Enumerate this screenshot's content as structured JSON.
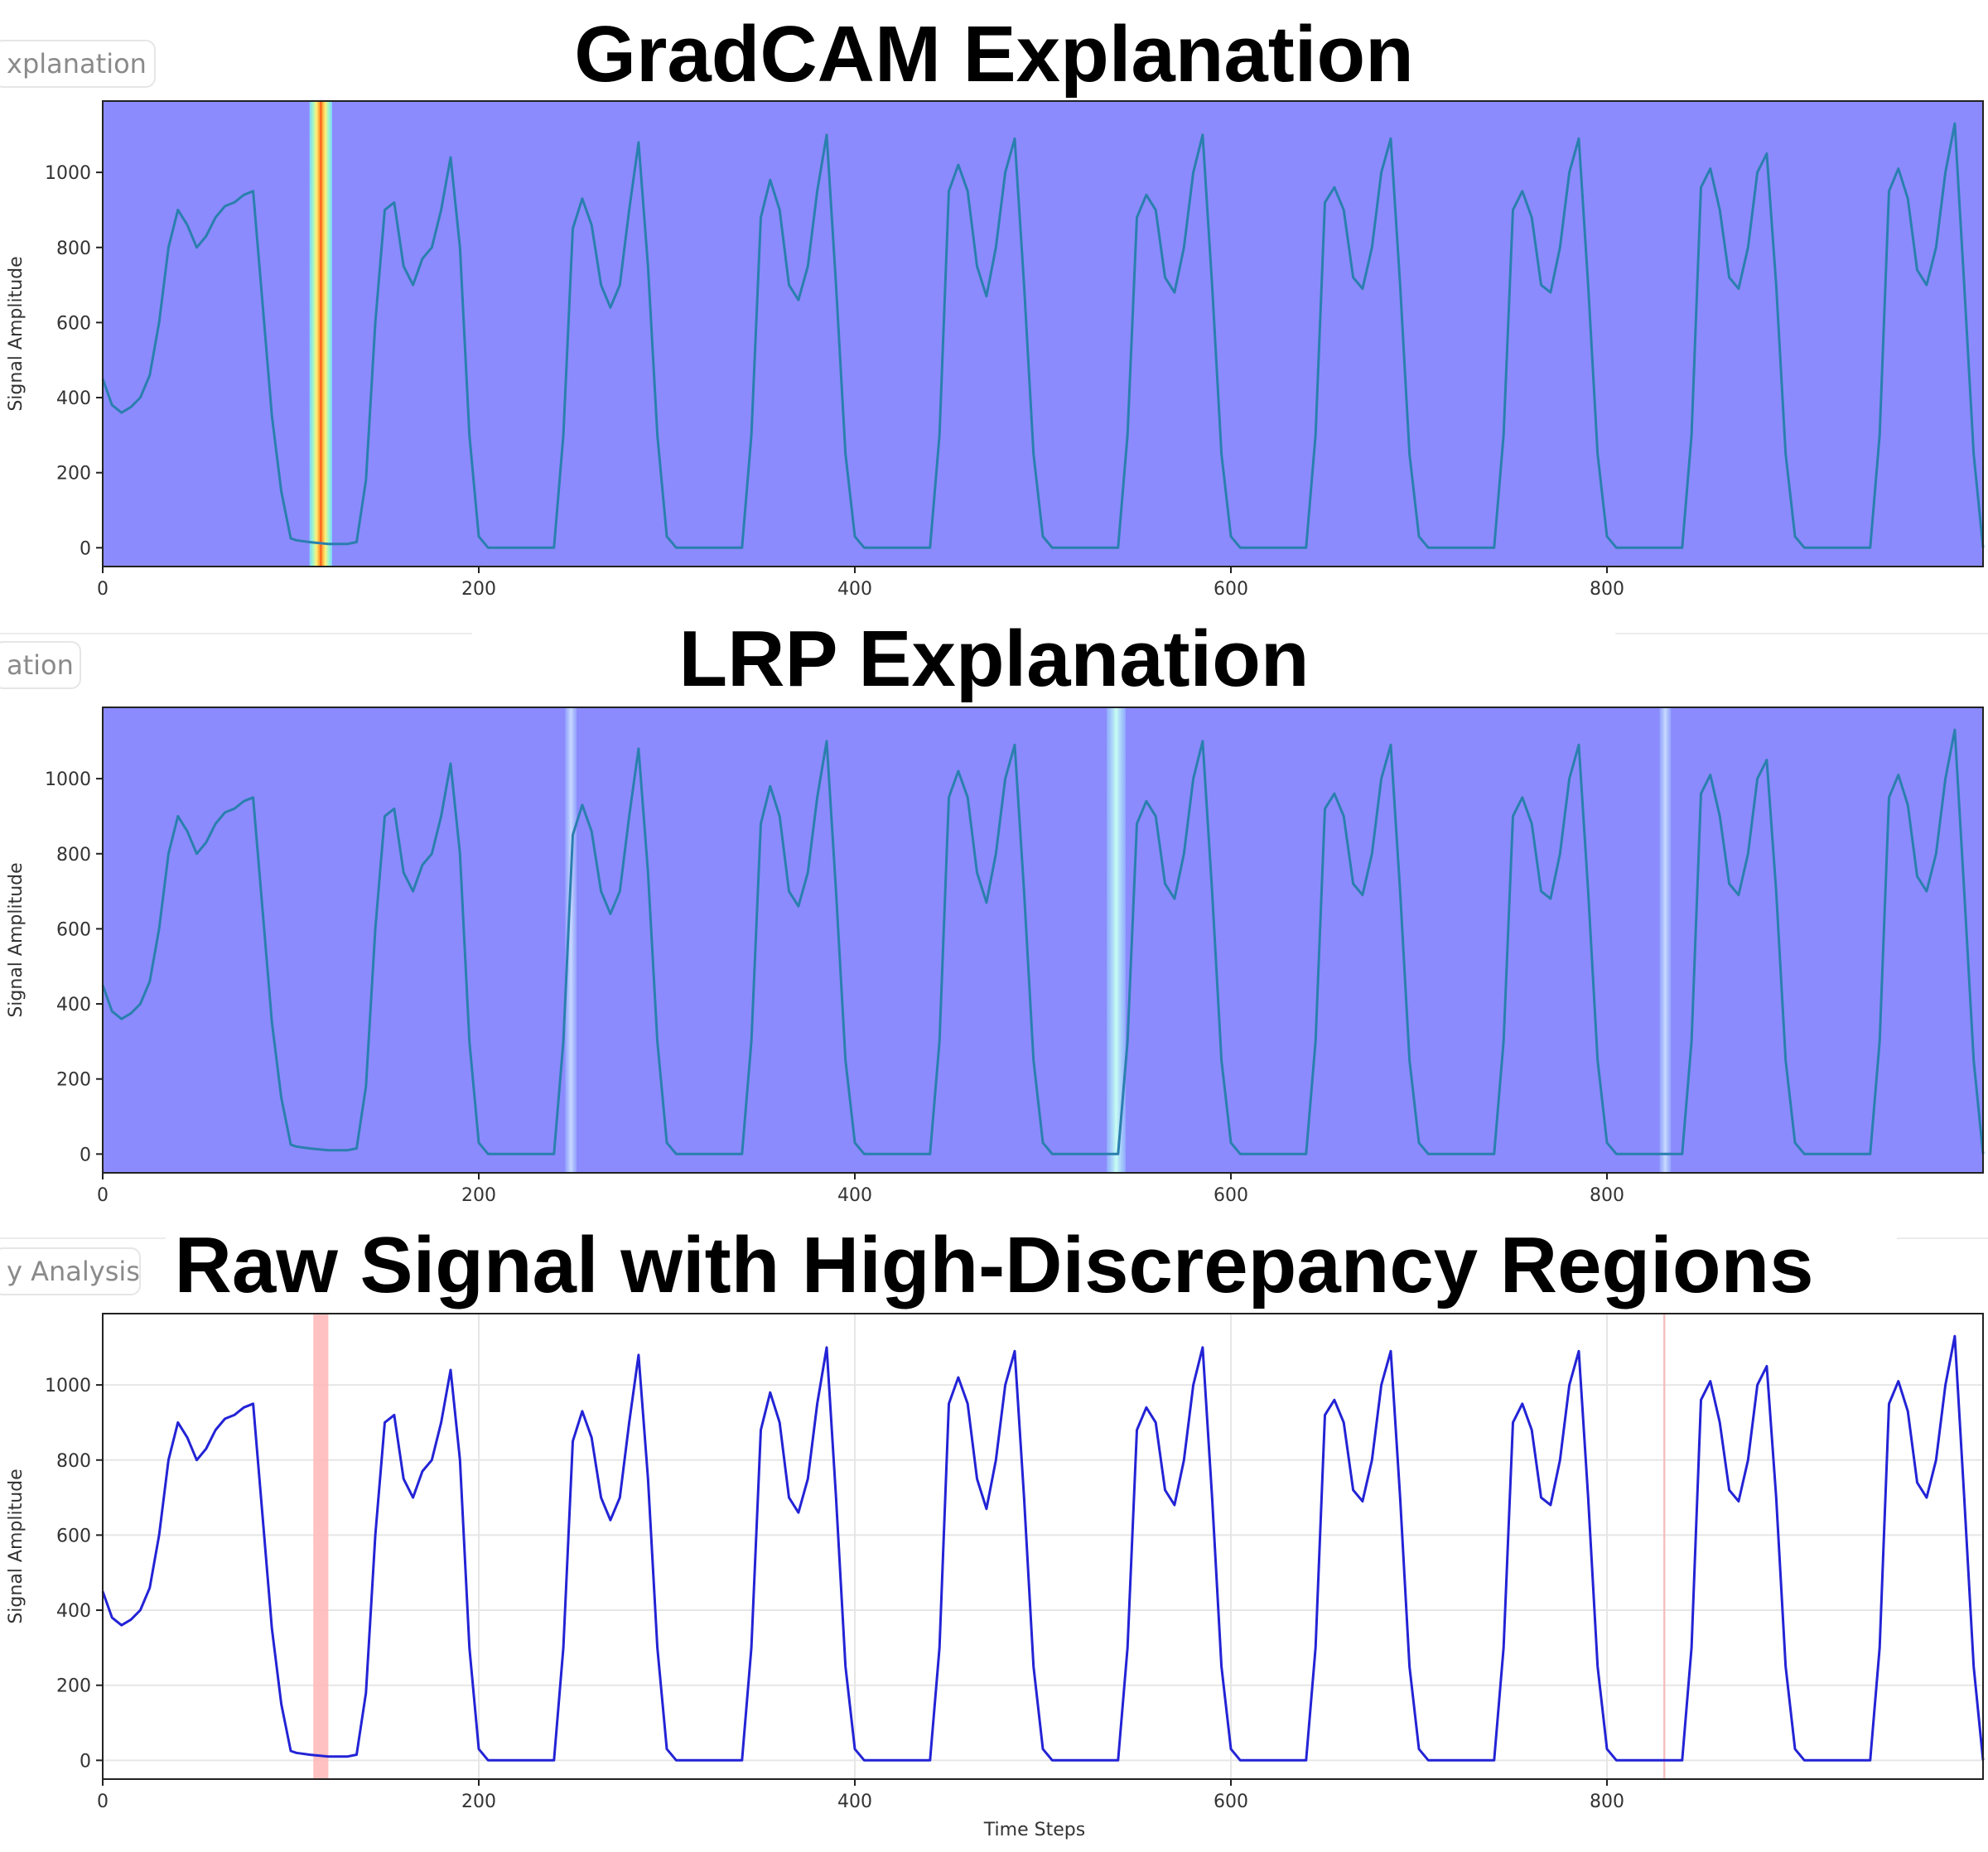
{
  "panels": [
    {
      "title": "GradCAM Explanation",
      "tab_label": "xplanation",
      "ylabel": "Signal Amplitude",
      "xlabel": "",
      "style": "heatmap-overlay",
      "background": "#8b8bfd",
      "line_color": "#2a7fae",
      "highlights": [
        {
          "start": 110,
          "end": 122,
          "kind": "gradcam-hot"
        }
      ]
    },
    {
      "title": "LRP Explanation",
      "tab_label": "ation",
      "ylabel": "Signal Amplitude",
      "xlabel": "",
      "style": "heatmap-overlay",
      "background": "#8b8bfd",
      "line_color": "#2a7fae",
      "highlights": [
        {
          "start": 246,
          "end": 252,
          "kind": "lrp-weak"
        },
        {
          "start": 534,
          "end": 544,
          "kind": "lrp-strong"
        },
        {
          "start": 828,
          "end": 834,
          "kind": "lrp-weak"
        }
      ]
    },
    {
      "title": "Raw Signal with High-Discrepancy Regions",
      "tab_label": "y Analysis",
      "ylabel": "Signal Amplitude",
      "xlabel": "Time Steps",
      "style": "plain",
      "background": "#ffffff",
      "line_color": "#2323d6",
      "highlights": [
        {
          "start": 112,
          "end": 120,
          "kind": "discrepancy"
        },
        {
          "start": 830,
          "end": 831,
          "kind": "discrepancy-thin"
        }
      ]
    }
  ],
  "chart_data": {
    "type": "line",
    "x_range": [
      0,
      1000
    ],
    "ylim": [
      -50,
      1190
    ],
    "x_ticks": [
      0,
      200,
      400,
      600,
      800
    ],
    "y_ticks": [
      0,
      200,
      400,
      600,
      800,
      1000
    ],
    "grid": "bottom panel only",
    "series": [
      {
        "x": [
          0,
          5,
          10,
          15,
          20,
          25,
          30,
          35,
          40,
          45,
          50,
          55,
          60,
          65,
          70,
          75,
          80,
          85,
          90,
          95,
          100,
          103,
          110,
          120,
          130,
          135,
          140,
          145,
          150,
          155,
          160,
          165,
          170,
          175,
          180,
          185,
          190,
          195,
          200,
          205,
          240,
          245,
          250,
          255,
          260,
          265,
          270,
          275,
          280,
          285,
          290,
          295,
          300,
          305,
          340,
          345,
          350,
          355,
          360,
          365,
          370,
          375,
          380,
          385,
          390,
          395,
          400,
          405,
          440,
          445,
          450,
          455,
          460,
          465,
          470,
          475,
          480,
          485,
          490,
          495,
          500,
          505,
          540,
          545,
          550,
          555,
          560,
          565,
          570,
          575,
          580,
          585,
          590,
          595,
          600,
          605,
          640,
          645,
          650,
          655,
          660,
          665,
          670,
          675,
          680,
          685,
          690,
          695,
          700,
          705,
          740,
          745,
          750,
          755,
          760,
          765,
          770,
          775,
          780,
          785,
          790,
          795,
          800,
          805,
          840,
          845,
          850,
          855,
          860,
          865,
          870,
          875,
          880,
          885,
          890,
          895,
          900,
          905,
          940,
          945,
          950,
          955,
          960,
          965,
          970,
          975,
          980,
          985,
          990,
          995,
          1000
        ],
        "y": [
          450,
          380,
          360,
          375,
          400,
          460,
          600,
          800,
          900,
          860,
          800,
          830,
          880,
          910,
          920,
          940,
          950,
          650,
          350,
          150,
          25,
          20,
          15,
          10,
          10,
          15,
          180,
          600,
          900,
          920,
          750,
          700,
          770,
          800,
          900,
          1040,
          800,
          300,
          30,
          0,
          0,
          300,
          850,
          930,
          860,
          700,
          640,
          700,
          900,
          1080,
          750,
          300,
          30,
          0,
          0,
          300,
          880,
          980,
          900,
          700,
          660,
          750,
          950,
          1100,
          700,
          250,
          30,
          0,
          0,
          300,
          950,
          1020,
          950,
          750,
          670,
          800,
          1000,
          1090,
          700,
          250,
          30,
          0,
          0,
          300,
          880,
          940,
          900,
          720,
          680,
          800,
          1000,
          1100,
          700,
          250,
          30,
          0,
          0,
          300,
          920,
          960,
          900,
          720,
          690,
          800,
          1000,
          1090,
          700,
          250,
          30,
          0,
          0,
          300,
          900,
          950,
          880,
          700,
          680,
          800,
          1000,
          1090,
          700,
          250,
          30,
          0,
          0,
          300,
          960,
          1010,
          900,
          720,
          690,
          800,
          1000,
          1050,
          700,
          250,
          30,
          0,
          0,
          300,
          950,
          1010,
          930,
          740,
          700,
          800,
          1000,
          1130,
          700,
          250,
          0
        ]
      }
    ]
  }
}
